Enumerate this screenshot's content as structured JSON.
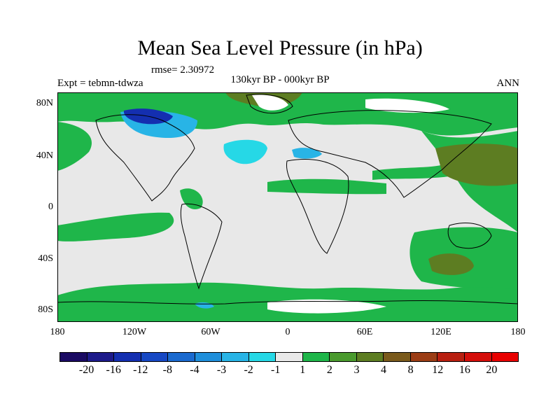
{
  "map": {
    "title": "Mean Sea Level Pressure (in hPa)",
    "rmse_text": "rmse= 2.30972",
    "experiment_text": "Expt = tebmn-tdwza",
    "period_text": "130kyr BP - 000kyr BP",
    "season_text": "ANN",
    "lat_ticks": [
      "80N",
      "40N",
      "0",
      "40S",
      "80S"
    ],
    "lon_ticks": [
      "180",
      "120W",
      "60W",
      "0",
      "60E",
      "120E",
      "180"
    ]
  },
  "colorbar": {
    "levels": [
      "-20",
      "-16",
      "-12",
      "-8",
      "-4",
      "-3",
      "-2",
      "-1",
      "1",
      "2",
      "3",
      "4",
      "8",
      "12",
      "16",
      "20"
    ],
    "colors": [
      "#1a0a63",
      "#1d1a8a",
      "#142fb0",
      "#1648c4",
      "#1a6acf",
      "#1f8fdb",
      "#28b4e6",
      "#26d8e6",
      "#e8e8e8",
      "#1fb64a",
      "#4a9a2e",
      "#5d7d22",
      "#7a5a1c",
      "#9b3d15",
      "#b81f10",
      "#d40e0a",
      "#e80000"
    ]
  }
}
